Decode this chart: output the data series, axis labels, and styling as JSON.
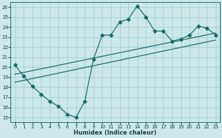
{
  "title": "",
  "xlabel": "Humidex (Indice chaleur)",
  "ylabel": "",
  "bg_color": "#cce8e8",
  "line_color": "#1a6b6b",
  "xlim": [
    -0.5,
    23.5
  ],
  "ylim": [
    14.5,
    26.5
  ],
  "xticks": [
    0,
    1,
    2,
    3,
    4,
    5,
    6,
    7,
    8,
    9,
    10,
    11,
    12,
    13,
    14,
    15,
    16,
    17,
    18,
    19,
    20,
    21,
    22,
    23
  ],
  "yticks": [
    15,
    16,
    17,
    18,
    19,
    20,
    21,
    22,
    23,
    24,
    25,
    26
  ],
  "line1_x": [
    0,
    1,
    2,
    3,
    4,
    5,
    6,
    7,
    8,
    9,
    10,
    11,
    12,
    13,
    14,
    15,
    16,
    17,
    18,
    19,
    20,
    21,
    22,
    23
  ],
  "line1_y": [
    20.2,
    19.1,
    18.1,
    17.3,
    16.6,
    16.1,
    15.3,
    15.0,
    16.6,
    20.8,
    23.2,
    23.2,
    24.5,
    24.8,
    26.1,
    25.0,
    23.6,
    23.6,
    22.6,
    22.8,
    23.2,
    24.1,
    23.9,
    23.2
  ],
  "line2_x": [
    0,
    23
  ],
  "line2_y": [
    19.3,
    23.4
  ],
  "line3_x": [
    0,
    23
  ],
  "line3_y": [
    18.5,
    22.7
  ],
  "marker": "D",
  "markersize": 2.5,
  "linewidth": 0.9,
  "tick_fontsize": 5.0,
  "xlabel_fontsize": 6.0
}
